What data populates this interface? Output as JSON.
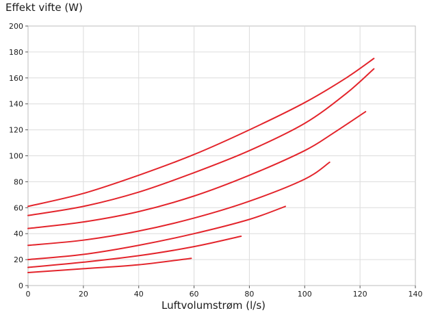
{
  "chart_data": {
    "type": "line",
    "ylabel": "Effekt vifte (W)",
    "xlabel": "Luftvolumstrøm (l/s)",
    "xlim": [
      0,
      140
    ],
    "ylim": [
      0,
      200
    ],
    "xticks": [
      0,
      20,
      40,
      60,
      80,
      100,
      120,
      140
    ],
    "yticks": [
      0,
      20,
      40,
      60,
      80,
      100,
      120,
      140,
      160,
      180,
      200
    ],
    "grid": true,
    "line_color": "#e3242b",
    "series": [
      {
        "x": [
          0,
          20,
          40,
          60,
          80,
          100,
          115,
          125
        ],
        "y": [
          61,
          71,
          85,
          101,
          120,
          141,
          160,
          175
        ]
      },
      {
        "x": [
          0,
          20,
          40,
          60,
          80,
          100,
          115,
          125
        ],
        "y": [
          54,
          61,
          72,
          87,
          104,
          125,
          148,
          167
        ]
      },
      {
        "x": [
          0,
          20,
          40,
          60,
          80,
          100,
          110,
          122
        ],
        "y": [
          44,
          49,
          57,
          69,
          85,
          104,
          117,
          134
        ]
      },
      {
        "x": [
          0,
          20,
          40,
          60,
          80,
          100,
          109
        ],
        "y": [
          31,
          35,
          42,
          52,
          65,
          82,
          95
        ]
      },
      {
        "x": [
          0,
          20,
          40,
          60,
          80,
          93
        ],
        "y": [
          20,
          24,
          31,
          40,
          51,
          61
        ]
      },
      {
        "x": [
          0,
          20,
          40,
          60,
          77
        ],
        "y": [
          14,
          18,
          23,
          30,
          38
        ]
      },
      {
        "x": [
          0,
          20,
          40,
          59
        ],
        "y": [
          10,
          13,
          16,
          21
        ]
      }
    ]
  }
}
